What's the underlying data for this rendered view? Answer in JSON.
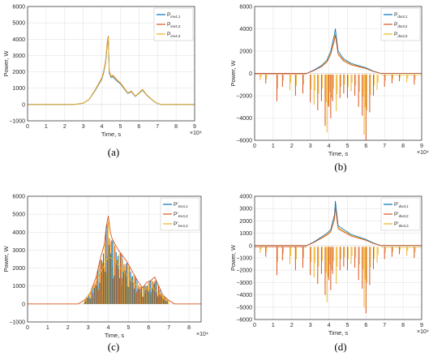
{
  "chart_data": [
    {
      "panel": "a",
      "caption": "(a)",
      "type": "line",
      "xlabel": "Time, s",
      "ylabel": "Power, W",
      "x_exponent": "×10⁴",
      "xlim": [
        0,
        9
      ],
      "ylim": [
        -1000,
        6000
      ],
      "xticks": [
        0,
        1,
        2,
        3,
        4,
        5,
        6,
        7,
        8,
        9
      ],
      "yticks": [
        -1000,
        0,
        1000,
        2000,
        3000,
        4000,
        5000,
        6000
      ],
      "grid": true,
      "legend": "top-right",
      "series": [
        {
          "name": "P",
          "sub": "inv4,1",
          "prime": false,
          "color": "#0072bd"
        },
        {
          "name": "P",
          "sub": "inv4,2",
          "prime": false,
          "color": "#d95319"
        },
        {
          "name": "P",
          "sub": "inv4,3",
          "prime": false,
          "color": "#edb120"
        }
      ],
      "data": {
        "x": [
          0,
          2.5,
          3.0,
          3.3,
          3.6,
          3.8,
          4.0,
          4.1,
          4.2,
          4.3,
          4.35,
          4.4,
          4.5,
          4.6,
          4.8,
          5.0,
          5.2,
          5.4,
          5.6,
          5.8,
          6.0,
          6.2,
          6.4,
          6.6,
          6.8,
          7.0,
          7.2,
          9
        ],
        "y": [
          0,
          0,
          80,
          300,
          800,
          1200,
          1600,
          2000,
          2600,
          3800,
          4100,
          2000,
          1700,
          1750,
          1500,
          1300,
          1000,
          700,
          800,
          500,
          700,
          900,
          600,
          400,
          200,
          60,
          0,
          0
        ]
      }
    },
    {
      "panel": "b",
      "caption": "(b)",
      "type": "line",
      "xlabel": "Time, s",
      "ylabel": "Power, W",
      "x_exponent": "×10⁴",
      "xlim": [
        0,
        9
      ],
      "ylim": [
        -6000,
        6000
      ],
      "xticks": [
        0,
        1,
        2,
        3,
        4,
        5,
        6,
        7,
        8,
        9
      ],
      "yticks": [
        -6000,
        -4000,
        -2000,
        0,
        2000,
        4000,
        6000
      ],
      "grid": true,
      "legend": "top-right",
      "series": [
        {
          "name": "P",
          "sub": "dsol,1",
          "prime": false,
          "color": "#0072bd"
        },
        {
          "name": "P",
          "sub": "dsol,2",
          "prime": false,
          "color": "#d95319"
        },
        {
          "name": "P",
          "sub": "dsol,3",
          "prime": false,
          "color": "#edb120"
        }
      ],
      "data": {
        "envelope_x": [
          0,
          2.8,
          3.2,
          3.6,
          3.9,
          4.1,
          4.3,
          4.35,
          4.5,
          4.8,
          5.2,
          5.6,
          6.0,
          6.4,
          6.8,
          9
        ],
        "envelope_y": [
          0,
          0,
          300,
          700,
          1200,
          2000,
          3500,
          4000,
          2000,
          1300,
          900,
          700,
          500,
          200,
          0,
          0
        ],
        "spike_x": [
          0.3,
          0.6,
          1.2,
          1.5,
          1.9,
          2.2,
          2.6,
          3.0,
          3.2,
          3.4,
          3.6,
          3.8,
          3.9,
          4.0,
          4.1,
          4.2,
          4.4,
          4.6,
          4.8,
          5.0,
          5.2,
          5.4,
          5.6,
          5.8,
          5.9,
          6.0,
          6.2,
          6.4,
          6.6,
          7.0,
          7.4,
          7.8,
          8.2,
          8.6
        ],
        "spike_y": [
          -600,
          -900,
          -2500,
          -1200,
          -1500,
          -2000,
          -1800,
          -2600,
          -2800,
          -3300,
          -2500,
          -4700,
          -5300,
          -3000,
          -4000,
          -2500,
          -3400,
          -2200,
          -1800,
          -2200,
          -1600,
          -2000,
          -3000,
          -3800,
          -5500,
          -6000,
          -3500,
          -2000,
          -1500,
          -1200,
          -900,
          -700,
          -800,
          -1000
        ]
      }
    },
    {
      "panel": "c",
      "caption": "(c)",
      "type": "line",
      "xlabel": "Time, s",
      "ylabel": "Power, W",
      "x_exponent": "×10⁴",
      "xlim": [
        0,
        8.6
      ],
      "ylim": [
        -1000,
        6000
      ],
      "xticks": [
        0,
        1,
        2,
        3,
        4,
        5,
        6,
        7,
        8
      ],
      "yticks": [
        -1000,
        0,
        1000,
        2000,
        3000,
        4000,
        5000,
        6000
      ],
      "grid": true,
      "legend": "top-right",
      "series": [
        {
          "name": "P",
          "sub": "inv4,1",
          "prime": true,
          "color": "#0072bd"
        },
        {
          "name": "P",
          "sub": "inv4,2",
          "prime": true,
          "color": "#d95319"
        },
        {
          "name": "P",
          "sub": "inv4,3",
          "prime": true,
          "color": "#edb120"
        }
      ],
      "data": {
        "envelope_x": [
          0,
          2.5,
          2.8,
          3.1,
          3.4,
          3.6,
          3.8,
          3.9,
          4.0,
          4.1,
          4.2,
          4.3,
          4.5,
          4.7,
          4.9,
          5.1,
          5.3,
          5.5,
          5.7,
          5.9,
          6.1,
          6.3,
          6.5,
          6.7,
          7.0,
          7.3,
          8.6
        ],
        "envelope_y": [
          0,
          0,
          200,
          600,
          1500,
          2500,
          3300,
          4300,
          4900,
          4000,
          3600,
          3400,
          3000,
          2700,
          2400,
          2000,
          1600,
          1200,
          900,
          1200,
          1300,
          1500,
          1000,
          500,
          200,
          0,
          0
        ],
        "fill_x": [
          2.8,
          3.2,
          3.6,
          4.0,
          4.3,
          4.6,
          5.0,
          5.4,
          5.8,
          6.2,
          6.6,
          7.0
        ],
        "fill_y": [
          150,
          800,
          1700,
          2600,
          2500,
          2000,
          1500,
          1000,
          800,
          900,
          500,
          100
        ]
      }
    },
    {
      "panel": "d",
      "caption": "(d)",
      "type": "line",
      "xlabel": "Time, s",
      "ylabel": "Power, W",
      "x_exponent": "×10⁴",
      "xlim": [
        0,
        9
      ],
      "ylim": [
        -6000,
        4000
      ],
      "xticks": [
        0,
        1,
        2,
        3,
        4,
        5,
        6,
        7,
        8,
        9
      ],
      "yticks": [
        -6000,
        -5000,
        -4000,
        -3000,
        -2000,
        -1000,
        0,
        1000,
        2000,
        3000,
        4000
      ],
      "grid": true,
      "legend": "top-right",
      "series": [
        {
          "name": "P",
          "sub": "dsol,1",
          "prime": true,
          "color": "#0072bd"
        },
        {
          "name": "P",
          "sub": "dsol,2",
          "prime": true,
          "color": "#d95319"
        },
        {
          "name": "P",
          "sub": "dsol,3",
          "prime": true,
          "color": "#edb120"
        }
      ],
      "data": {
        "envelope_x": [
          0,
          2.8,
          3.2,
          3.6,
          3.9,
          4.1,
          4.3,
          4.35,
          4.5,
          4.8,
          5.2,
          5.6,
          6.0,
          6.4,
          6.8,
          9
        ],
        "envelope_y": [
          0,
          0,
          300,
          700,
          1000,
          1300,
          2500,
          3600,
          1600,
          1300,
          900,
          700,
          500,
          200,
          0,
          0
        ],
        "spike_x": [
          0.3,
          0.6,
          1.2,
          1.5,
          1.9,
          2.2,
          2.6,
          3.0,
          3.2,
          3.4,
          3.6,
          3.8,
          3.9,
          4.0,
          4.1,
          4.2,
          4.4,
          4.6,
          4.8,
          5.0,
          5.2,
          5.4,
          5.6,
          5.8,
          5.9,
          6.0,
          6.2,
          6.4,
          6.6,
          7.0,
          7.4,
          7.8,
          8.2,
          8.6
        ],
        "spike_y": [
          -600,
          -900,
          -2400,
          -1200,
          -1500,
          -2000,
          -1800,
          -2400,
          -2600,
          -3100,
          -2300,
          -4000,
          -4600,
          -2800,
          -3600,
          -2300,
          -3100,
          -2000,
          -1700,
          -2000,
          -1500,
          -1800,
          -2800,
          -3500,
          -5000,
          -5500,
          -3200,
          -1900,
          -1400,
          -1100,
          -900,
          -700,
          -800,
          -1000
        ]
      }
    }
  ]
}
